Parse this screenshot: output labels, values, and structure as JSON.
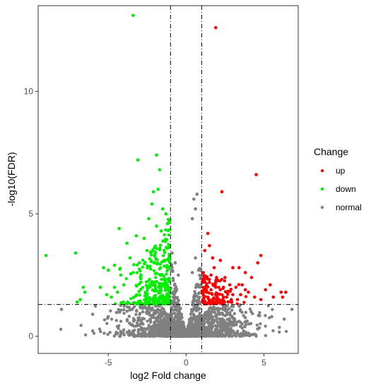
{
  "chart_data": {
    "type": "scatter",
    "title": "",
    "xlabel": "log2 Fold change",
    "ylabel": "-log10(FDR)",
    "xlim": [
      -9.5,
      7.2
    ],
    "ylim": [
      -0.7,
      13.5
    ],
    "xticks": [
      "-5",
      "0",
      "5"
    ],
    "xtick_values": [
      -5,
      0,
      5
    ],
    "yticks": [
      "0",
      "5",
      "10"
    ],
    "ytick_values": [
      0,
      5,
      10
    ],
    "grid": false,
    "vlines": [
      -1,
      1
    ],
    "hline": 1.3,
    "legend": {
      "title": "Change",
      "placement": "right",
      "entries": [
        {
          "label": "up",
          "color": "#ff0000"
        },
        {
          "label": "down",
          "color": "#00ee00"
        },
        {
          "label": "normal",
          "color": "#808080"
        }
      ]
    },
    "series": [
      {
        "name": "up",
        "color": "#ff0000",
        "points": [
          [
            1.9,
            12.6
          ],
          [
            4.5,
            6.6
          ],
          [
            2.3,
            5.9
          ],
          [
            1.4,
            4.2
          ],
          [
            1.5,
            3.7
          ],
          [
            1.2,
            3.5
          ],
          [
            1.7,
            3.2
          ],
          [
            2.2,
            3.1
          ],
          [
            4.8,
            3.3
          ],
          [
            4.6,
            3.0
          ],
          [
            3.0,
            2.8
          ],
          [
            3.4,
            2.8
          ],
          [
            3.8,
            2.6
          ],
          [
            4.2,
            2.4
          ],
          [
            2.5,
            2.4
          ],
          [
            1.3,
            2.4
          ],
          [
            1.6,
            2.5
          ],
          [
            2.0,
            2.3
          ],
          [
            2.8,
            2.1
          ],
          [
            3.2,
            2.0
          ],
          [
            3.6,
            2.1
          ],
          [
            5.4,
            2.1
          ],
          [
            5.1,
            1.9
          ],
          [
            6.1,
            1.8
          ],
          [
            6.4,
            1.8
          ],
          [
            6.2,
            1.6
          ],
          [
            4.0,
            1.8
          ],
          [
            4.4,
            1.6
          ],
          [
            3.5,
            1.7
          ],
          [
            2.6,
            1.8
          ],
          [
            2.2,
            1.9
          ],
          [
            1.9,
            1.7
          ],
          [
            1.6,
            1.9
          ],
          [
            1.3,
            1.9
          ],
          [
            1.1,
            1.7
          ],
          [
            1.4,
            1.6
          ],
          [
            1.7,
            1.5
          ],
          [
            2.1,
            1.5
          ],
          [
            2.4,
            1.6
          ],
          [
            2.9,
            1.5
          ],
          [
            3.3,
            1.5
          ],
          [
            3.0,
            1.7
          ],
          [
            1.2,
            1.4
          ],
          [
            1.5,
            1.4
          ],
          [
            1.8,
            1.4
          ],
          [
            1.1,
            2.6
          ],
          [
            1.2,
            2.0
          ],
          [
            1.5,
            2.2
          ],
          [
            1.3,
            1.8
          ],
          [
            1.1,
            1.5
          ],
          [
            2.0,
            1.6
          ],
          [
            2.7,
            1.4
          ],
          [
            1.6,
            1.35
          ],
          [
            1.9,
            2.0
          ],
          [
            2.4,
            2.0
          ],
          [
            1.8,
            2.8
          ],
          [
            2.6,
            1.6
          ],
          [
            3.8,
            1.9
          ],
          [
            5.6,
            1.6
          ],
          [
            4.8,
            1.5
          ]
        ]
      },
      {
        "name": "down",
        "color": "#00ee00",
        "points": [
          [
            -3.4,
            13.1
          ],
          [
            -1.9,
            7.4
          ],
          [
            -3.1,
            7.2
          ],
          [
            -1.7,
            6.8
          ],
          [
            -2.1,
            5.9
          ],
          [
            -9.0,
            3.3
          ],
          [
            -7.1,
            3.4
          ],
          [
            -6.6,
            2.0
          ],
          [
            -6.5,
            1.8
          ],
          [
            -6.8,
            1.5
          ],
          [
            -7.0,
            1.4
          ],
          [
            -4.3,
            4.4
          ],
          [
            -3.8,
            3.8
          ],
          [
            -3.2,
            4.1
          ],
          [
            -2.7,
            4.0
          ],
          [
            -2.5,
            3.5
          ],
          [
            -5.3,
            2.8
          ],
          [
            -5.0,
            2.7
          ],
          [
            -4.6,
            2.9
          ],
          [
            -4.2,
            2.5
          ],
          [
            -4.0,
            2.1
          ],
          [
            -3.6,
            3.2
          ],
          [
            -3.4,
            2.6
          ],
          [
            -3.0,
            3.0
          ],
          [
            -2.9,
            2.4
          ],
          [
            -5.5,
            2.0
          ],
          [
            -5.1,
            1.7
          ],
          [
            -4.8,
            1.6
          ],
          [
            -4.6,
            2.0
          ],
          [
            -4.4,
            1.8
          ],
          [
            -2.4,
            4.8
          ],
          [
            -2.2,
            5.4
          ],
          [
            -1.8,
            6.0
          ],
          [
            -1.5,
            5.2
          ],
          [
            -1.3,
            5.0
          ],
          [
            -1.9,
            4.5
          ],
          [
            -1.6,
            4.3
          ],
          [
            -1.4,
            3.9
          ],
          [
            -1.2,
            4.6
          ]
        ]
      },
      {
        "name": "normal",
        "color": "#808080",
        "points": [
          [
            0.7,
            5.8
          ],
          [
            0.5,
            5.6
          ],
          [
            0.6,
            5.2
          ],
          [
            0.4,
            4.8
          ],
          [
            -0.9,
            3.4
          ],
          [
            -0.7,
            3.0
          ],
          [
            0.6,
            3.2
          ],
          [
            0.8,
            2.7
          ],
          [
            -0.5,
            2.5
          ],
          [
            0.4,
            2.6
          ],
          [
            -6.0,
            0.9
          ],
          [
            -5.0,
            0.8
          ],
          [
            5.5,
            0.8
          ],
          [
            6.3,
            0.7
          ],
          [
            -4.2,
            0.2
          ],
          [
            4.6,
            0.3
          ],
          [
            -8.0,
            1.1
          ],
          [
            6.8,
            1.1
          ]
        ]
      }
    ]
  }
}
